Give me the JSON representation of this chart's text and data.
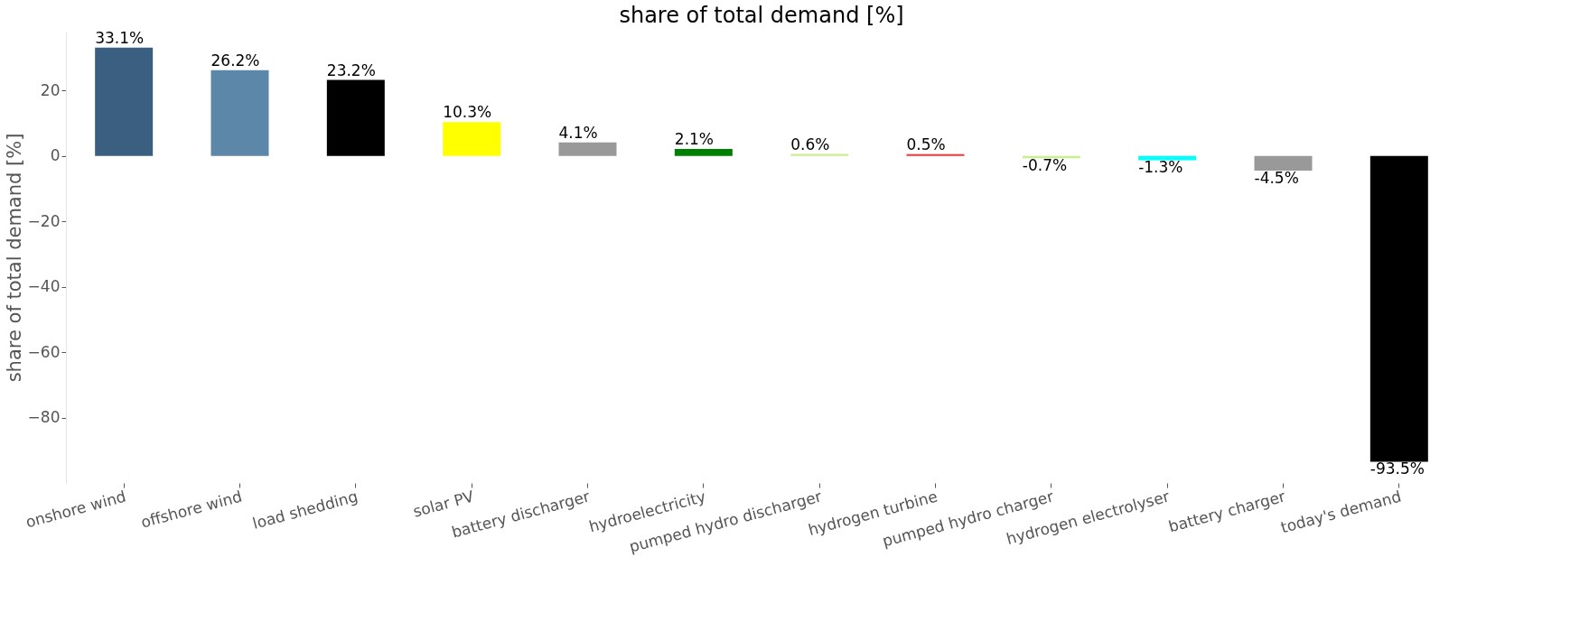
{
  "chart_data": {
    "type": "bar",
    "title": "share of total demand [%]",
    "ylabel": "share of total demand [%]",
    "categories": [
      "onshore wind",
      "offshore wind",
      "load shedding",
      "solar PV",
      "battery discharger",
      "hydroelectricity",
      "pumped hydro discharger",
      "hydrogen turbine",
      "pumped hydro charger",
      "hydrogen electrolyser",
      "battery charger",
      "today's demand"
    ],
    "values": [
      33.1,
      26.2,
      23.2,
      10.3,
      4.1,
      2.1,
      0.6,
      0.5,
      -0.7,
      -1.3,
      -4.5,
      -93.5
    ],
    "colors": [
      "#3b5f80",
      "#5d87a8",
      "#000000",
      "#ffff00",
      "#999999",
      "#008000",
      "#c8f08c",
      "#ff3333",
      "#c8f08c",
      "#00ffff",
      "#999999",
      "#000000"
    ],
    "value_labels": [
      "33.1%",
      "26.2%",
      "23.2%",
      "10.3%",
      "4.1%",
      "2.1%",
      "0.6%",
      "0.5%",
      "-0.7%",
      "-1.3%",
      "-4.5%",
      "-93.5%"
    ],
    "ylim": [
      -100,
      38
    ],
    "yticks": [
      -80,
      -60,
      -40,
      -20,
      0,
      20
    ],
    "grid": false
  }
}
